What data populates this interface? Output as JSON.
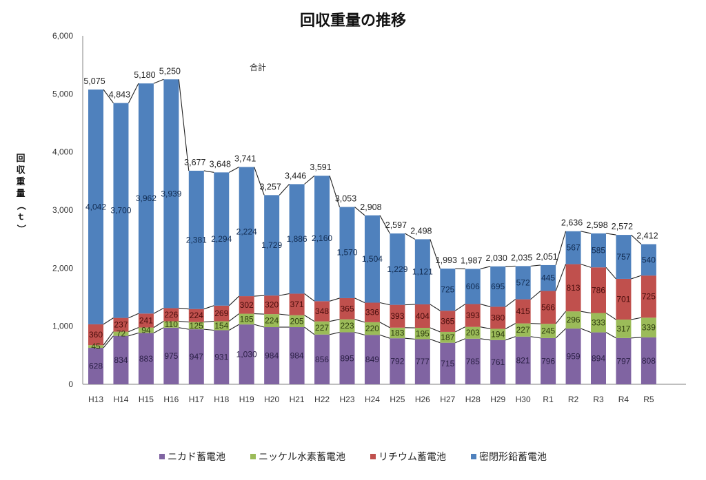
{
  "chart_data": {
    "type": "bar",
    "stacked": true,
    "title": "回収重量の推移",
    "xlabel": "",
    "ylabel": "回収重量（ｔ）",
    "ylim": [
      0,
      6000
    ],
    "yticks": [
      "0",
      "1,000",
      "2,000",
      "3,000",
      "4,000",
      "5,000",
      "6,000"
    ],
    "ytick_values": [
      0,
      1000,
      2000,
      3000,
      4000,
      5000,
      6000
    ],
    "grid": false,
    "legend_position": "bottom",
    "total_annotation": "合計",
    "categories": [
      "H13",
      "H14",
      "H15",
      "H16",
      "H17",
      "H18",
      "H19",
      "H20",
      "H21",
      "H22",
      "H23",
      "H24",
      "H25",
      "H26",
      "H27",
      "H28",
      "H29",
      "H30",
      "R1",
      "R2",
      "R3",
      "R4",
      "R5"
    ],
    "series": [
      {
        "name": "ニカド蓄電池",
        "color": "#8064A2",
        "label_color": "#2a1f45",
        "values": [
          628,
          834,
          883,
          975,
          947,
          931,
          1030,
          984,
          984,
          856,
          895,
          849,
          792,
          777,
          715,
          785,
          761,
          821,
          796,
          959,
          894,
          797,
          808
        ],
        "labels": [
          "628",
          "834",
          "883",
          "975",
          "947",
          "931",
          "1,030",
          "984",
          "984",
          "856",
          "895",
          "849",
          "792",
          "777",
          "715",
          "785",
          "761",
          "821",
          "796",
          "959",
          "894",
          "797",
          "808"
        ]
      },
      {
        "name": "ニッケル水素蓄電池",
        "color": "#9BBB59",
        "label_color": "#2f3d10",
        "values": [
          45,
          72,
          94,
          110,
          125,
          154,
          185,
          224,
          205,
          227,
          223,
          220,
          183,
          195,
          187,
          203,
          194,
          227,
          245,
          296,
          333,
          317,
          339
        ],
        "labels": [
          "45",
          "72",
          "94",
          "110",
          "125",
          "154",
          "185",
          "224",
          "205",
          "227",
          "223",
          "220",
          "183",
          "195",
          "187",
          "203",
          "194",
          "227",
          "245",
          "296",
          "333",
          "317",
          "339"
        ]
      },
      {
        "name": "リチウム蓄電池",
        "color": "#C0504D",
        "label_color": "#4a0d0c",
        "values": [
          360,
          237,
          241,
          226,
          224,
          269,
          302,
          320,
          371,
          348,
          365,
          336,
          393,
          404,
          365,
          393,
          380,
          415,
          566,
          813,
          786,
          701,
          725
        ],
        "labels": [
          "360",
          "237",
          "241",
          "226",
          "224",
          "269",
          "302",
          "320",
          "371",
          "348",
          "365",
          "336",
          "393",
          "404",
          "365",
          "393",
          "380",
          "415",
          "566",
          "813",
          "786",
          "701",
          "725"
        ]
      },
      {
        "name": "密閉形鉛蓄電池",
        "color": "#4F81BD",
        "label_color": "#102a4f",
        "values": [
          4042,
          3700,
          3962,
          3939,
          2381,
          2294,
          2224,
          1729,
          1886,
          2160,
          1570,
          1504,
          1229,
          1121,
          725,
          606,
          695,
          572,
          445,
          567,
          585,
          757,
          540
        ],
        "labels": [
          "4,042",
          "3,700",
          "3,962",
          "3,939",
          "2,381",
          "2,294",
          "2,224",
          "1,729",
          "1,886",
          "2,160",
          "1,570",
          "1,504",
          "1,229",
          "1,121",
          "725",
          "606",
          "695",
          "572",
          "445",
          "567",
          "585",
          "757",
          "540"
        ]
      }
    ],
    "totals": [
      5075,
      4843,
      5180,
      5250,
      3677,
      3648,
      3741,
      3257,
      3446,
      3591,
      3053,
      2908,
      2597,
      2498,
      1993,
      1987,
      2030,
      2035,
      2051,
      2636,
      2598,
      2572,
      2412
    ],
    "total_labels": [
      "5,075",
      "4,843",
      "5,180",
      "5,250",
      "3,677",
      "3,648",
      "3,741",
      "3,257",
      "3,446",
      "3,591",
      "3,053",
      "2,908",
      "2,597",
      "2,498",
      "1,993",
      "1,987",
      "2,030",
      "2,035",
      "2,051",
      "2,636",
      "2,598",
      "2,572",
      "2,412"
    ]
  }
}
